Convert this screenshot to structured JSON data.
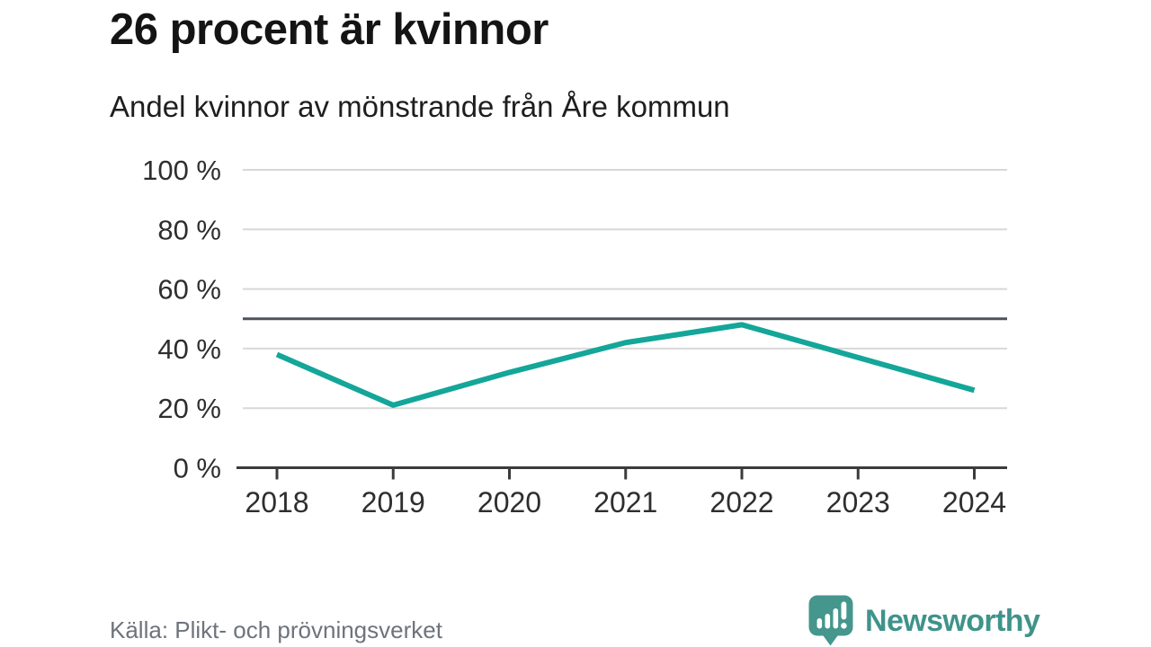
{
  "header": {
    "title": "26 procent är kvinnor",
    "subtitle": "Andel kvinnor av mönstrande från Åre kommun"
  },
  "footer": {
    "source": "Källa: Plikt- och prövningsverket",
    "brand": "Newsworthy"
  },
  "chart_data": {
    "type": "line",
    "title": "26 procent är kvinnor",
    "subtitle": "Andel kvinnor av mönstrande från Åre kommun",
    "x": [
      "2018",
      "2019",
      "2020",
      "2021",
      "2022",
      "2023",
      "2024"
    ],
    "series": [
      {
        "name": "andel-kvinnor",
        "values": [
          38,
          21,
          32,
          42,
          48,
          37,
          26
        ]
      }
    ],
    "ylim": [
      0,
      100
    ],
    "y_ticks": [
      0,
      20,
      40,
      60,
      80,
      100
    ],
    "y_tick_suffix": " %",
    "reference_line": 50,
    "grid": true,
    "legend": "none",
    "colors": {
      "line": "#13a699",
      "grid": "#d8d8d8",
      "reference": "#4e525b",
      "axis": "#3b3b3b",
      "tick_label": "#2e2e2e",
      "brand": "#3f938b",
      "logo_fill": "#45968d"
    }
  }
}
